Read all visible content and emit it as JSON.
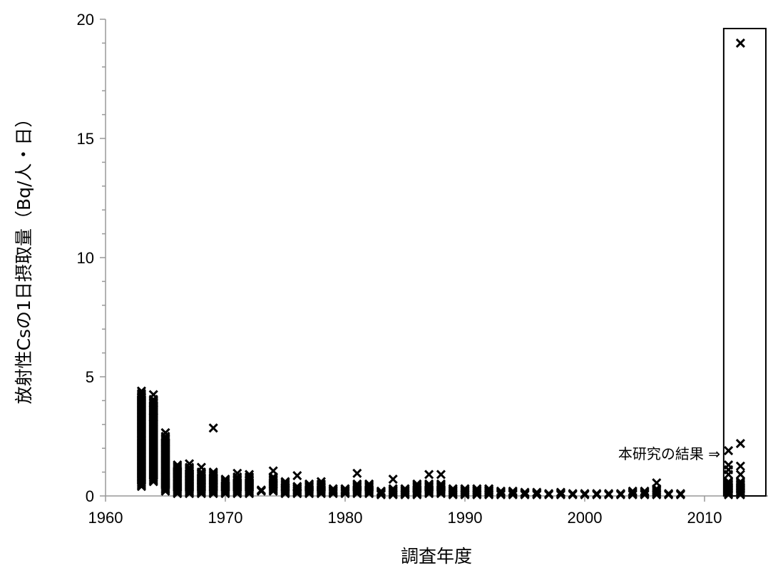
{
  "chart_data": {
    "type": "scatter",
    "title": "",
    "xlabel": "調査年度",
    "ylabel": "放射性Csの1日摂取量（Bq/人・日）",
    "xlim": [
      1960,
      2014
    ],
    "ylim": [
      0,
      20
    ],
    "xticks": [
      "1960",
      "1970",
      "1980",
      "1990",
      "2000",
      "2010"
    ],
    "yticks": [
      "0",
      "5",
      "10",
      "15",
      "20"
    ],
    "grid": false,
    "legend": "none",
    "marker": "x",
    "marker_color": "#000000",
    "annotation": {
      "text": "本研究の結果 ⇒",
      "highlight_box_x_range": [
        2011.6,
        2014
      ]
    },
    "yearly_ranges": [
      {
        "x": 1963,
        "min": 0.4,
        "max": 4.3,
        "outliers": [
          4.4
        ]
      },
      {
        "x": 1964,
        "min": 0.6,
        "max": 4.0,
        "outliers": [
          4.25,
          4.05,
          3.9,
          3.3
        ]
      },
      {
        "x": 1965,
        "min": 0.2,
        "max": 2.5,
        "outliers": [
          2.65
        ]
      },
      {
        "x": 1966,
        "min": 0.1,
        "max": 1.3,
        "outliers": []
      },
      {
        "x": 1967,
        "min": 0.1,
        "max": 1.2,
        "outliers": [
          1.35
        ]
      },
      {
        "x": 1968,
        "min": 0.1,
        "max": 1.0,
        "outliers": [
          1.2
        ]
      },
      {
        "x": 1969,
        "min": 0.1,
        "max": 1.0,
        "outliers": [
          2.85
        ]
      },
      {
        "x": 1970,
        "min": 0.1,
        "max": 0.7,
        "outliers": []
      },
      {
        "x": 1971,
        "min": 0.1,
        "max": 0.8,
        "outliers": [
          0.95
        ]
      },
      {
        "x": 1972,
        "min": 0.1,
        "max": 0.8,
        "outliers": [
          0.9
        ]
      },
      {
        "x": 1973,
        "min": 0.2,
        "max": 0.25,
        "outliers": []
      },
      {
        "x": 1974,
        "min": 0.2,
        "max": 0.8,
        "outliers": [
          1.05
        ]
      },
      {
        "x": 1975,
        "min": 0.1,
        "max": 0.6,
        "outliers": []
      },
      {
        "x": 1976,
        "min": 0.1,
        "max": 0.4,
        "outliers": [
          0.85
        ]
      },
      {
        "x": 1977,
        "min": 0.1,
        "max": 0.5,
        "outliers": []
      },
      {
        "x": 1978,
        "min": 0.1,
        "max": 0.5,
        "outliers": [
          0.6
        ]
      },
      {
        "x": 1979,
        "min": 0.1,
        "max": 0.3,
        "outliers": []
      },
      {
        "x": 1980,
        "min": 0.1,
        "max": 0.3,
        "outliers": []
      },
      {
        "x": 1981,
        "min": 0.1,
        "max": 0.5,
        "outliers": [
          0.95
        ]
      },
      {
        "x": 1982,
        "min": 0.1,
        "max": 0.5,
        "outliers": []
      },
      {
        "x": 1983,
        "min": 0.05,
        "max": 0.2,
        "outliers": []
      },
      {
        "x": 1984,
        "min": 0.05,
        "max": 0.3,
        "outliers": [
          0.7
        ]
      },
      {
        "x": 1985,
        "min": 0.05,
        "max": 0.3,
        "outliers": []
      },
      {
        "x": 1986,
        "min": 0.05,
        "max": 0.5,
        "outliers": []
      },
      {
        "x": 1987,
        "min": 0.1,
        "max": 0.5,
        "outliers": [
          0.9
        ]
      },
      {
        "x": 1988,
        "min": 0.1,
        "max": 0.5,
        "outliers": [
          0.9
        ]
      },
      {
        "x": 1989,
        "min": 0.05,
        "max": 0.3,
        "outliers": []
      },
      {
        "x": 1990,
        "min": 0.05,
        "max": 0.3,
        "outliers": []
      },
      {
        "x": 1991,
        "min": 0.05,
        "max": 0.3,
        "outliers": []
      },
      {
        "x": 1992,
        "min": 0.05,
        "max": 0.3,
        "outliers": []
      },
      {
        "x": 1993,
        "min": 0.05,
        "max": 0.2,
        "outliers": []
      },
      {
        "x": 1994,
        "min": 0.05,
        "max": 0.2,
        "outliers": []
      },
      {
        "x": 1995,
        "min": 0.05,
        "max": 0.15,
        "outliers": []
      },
      {
        "x": 1996,
        "min": 0.05,
        "max": 0.15,
        "outliers": []
      },
      {
        "x": 1997,
        "min": 0.05,
        "max": 0.1,
        "outliers": []
      },
      {
        "x": 1998,
        "min": 0.05,
        "max": 0.15,
        "outliers": []
      },
      {
        "x": 1999,
        "min": 0.05,
        "max": 0.1,
        "outliers": []
      },
      {
        "x": 2000,
        "min": 0.05,
        "max": 0.1,
        "outliers": []
      },
      {
        "x": 2001,
        "min": 0.05,
        "max": 0.1,
        "outliers": []
      },
      {
        "x": 2002,
        "min": 0.05,
        "max": 0.1,
        "outliers": []
      },
      {
        "x": 2003,
        "min": 0.05,
        "max": 0.1,
        "outliers": []
      },
      {
        "x": 2004,
        "min": 0.05,
        "max": 0.2,
        "outliers": []
      },
      {
        "x": 2005,
        "min": 0.05,
        "max": 0.2,
        "outliers": []
      },
      {
        "x": 2006,
        "min": 0.05,
        "max": 0.3,
        "outliers": [
          0.55
        ]
      },
      {
        "x": 2007,
        "min": 0.05,
        "max": 0.1,
        "outliers": []
      },
      {
        "x": 2008,
        "min": 0.05,
        "max": 0.1,
        "outliers": []
      },
      {
        "x": 2012,
        "min": 0.05,
        "max": 0.6,
        "outliers": [
          1.9,
          1.3,
          1.1,
          0.9
        ]
      },
      {
        "x": 2013,
        "min": 0.05,
        "max": 0.6,
        "outliers": [
          19.0,
          2.2,
          1.25,
          0.9
        ]
      }
    ]
  }
}
